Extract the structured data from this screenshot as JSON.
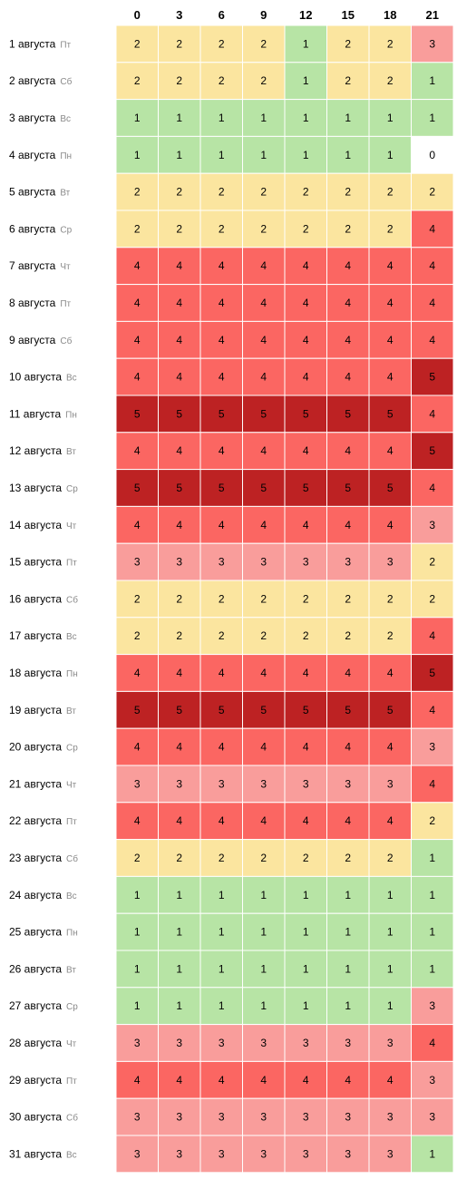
{
  "chart_data": {
    "type": "heatmap",
    "columns": [
      "0",
      "3",
      "6",
      "9",
      "12",
      "15",
      "18",
      "21"
    ],
    "rows": [
      {
        "date": "1 августа",
        "day": "Пт",
        "values": [
          2,
          2,
          2,
          2,
          1,
          2,
          2,
          3
        ]
      },
      {
        "date": "2 августа",
        "day": "Сб",
        "values": [
          2,
          2,
          2,
          2,
          1,
          2,
          2,
          1
        ]
      },
      {
        "date": "3 августа",
        "day": "Вс",
        "values": [
          1,
          1,
          1,
          1,
          1,
          1,
          1,
          1
        ]
      },
      {
        "date": "4 августа",
        "day": "Пн",
        "values": [
          1,
          1,
          1,
          1,
          1,
          1,
          1,
          0
        ]
      },
      {
        "date": "5 августа",
        "day": "Вт",
        "values": [
          2,
          2,
          2,
          2,
          2,
          2,
          2,
          2
        ]
      },
      {
        "date": "6 августа",
        "day": "Ср",
        "values": [
          2,
          2,
          2,
          2,
          2,
          2,
          2,
          4
        ]
      },
      {
        "date": "7 августа",
        "day": "Чт",
        "values": [
          4,
          4,
          4,
          4,
          4,
          4,
          4,
          4
        ]
      },
      {
        "date": "8 августа",
        "day": "Пт",
        "values": [
          4,
          4,
          4,
          4,
          4,
          4,
          4,
          4
        ]
      },
      {
        "date": "9 августа",
        "day": "Сб",
        "values": [
          4,
          4,
          4,
          4,
          4,
          4,
          4,
          4
        ]
      },
      {
        "date": "10 августа",
        "day": "Вс",
        "values": [
          4,
          4,
          4,
          4,
          4,
          4,
          4,
          5
        ]
      },
      {
        "date": "11 августа",
        "day": "Пн",
        "values": [
          5,
          5,
          5,
          5,
          5,
          5,
          5,
          4
        ]
      },
      {
        "date": "12 августа",
        "day": "Вт",
        "values": [
          4,
          4,
          4,
          4,
          4,
          4,
          4,
          5
        ]
      },
      {
        "date": "13 августа",
        "day": "Ср",
        "values": [
          5,
          5,
          5,
          5,
          5,
          5,
          5,
          4
        ]
      },
      {
        "date": "14 августа",
        "day": "Чт",
        "values": [
          4,
          4,
          4,
          4,
          4,
          4,
          4,
          3
        ]
      },
      {
        "date": "15 августа",
        "day": "Пт",
        "values": [
          3,
          3,
          3,
          3,
          3,
          3,
          3,
          2
        ]
      },
      {
        "date": "16 августа",
        "day": "Сб",
        "values": [
          2,
          2,
          2,
          2,
          2,
          2,
          2,
          2
        ]
      },
      {
        "date": "17 августа",
        "day": "Вс",
        "values": [
          2,
          2,
          2,
          2,
          2,
          2,
          2,
          4
        ]
      },
      {
        "date": "18 августа",
        "day": "Пн",
        "values": [
          4,
          4,
          4,
          4,
          4,
          4,
          4,
          5
        ]
      },
      {
        "date": "19 августа",
        "day": "Вт",
        "values": [
          5,
          5,
          5,
          5,
          5,
          5,
          5,
          4
        ]
      },
      {
        "date": "20 августа",
        "day": "Ср",
        "values": [
          4,
          4,
          4,
          4,
          4,
          4,
          4,
          3
        ]
      },
      {
        "date": "21 августа",
        "day": "Чт",
        "values": [
          3,
          3,
          3,
          3,
          3,
          3,
          3,
          4
        ]
      },
      {
        "date": "22 августа",
        "day": "Пт",
        "values": [
          4,
          4,
          4,
          4,
          4,
          4,
          4,
          2
        ]
      },
      {
        "date": "23 августа",
        "day": "Сб",
        "values": [
          2,
          2,
          2,
          2,
          2,
          2,
          2,
          1
        ]
      },
      {
        "date": "24 августа",
        "day": "Вс",
        "values": [
          1,
          1,
          1,
          1,
          1,
          1,
          1,
          1
        ]
      },
      {
        "date": "25 августа",
        "day": "Пн",
        "values": [
          1,
          1,
          1,
          1,
          1,
          1,
          1,
          1
        ]
      },
      {
        "date": "26 августа",
        "day": "Вт",
        "values": [
          1,
          1,
          1,
          1,
          1,
          1,
          1,
          1
        ]
      },
      {
        "date": "27 августа",
        "day": "Ср",
        "values": [
          1,
          1,
          1,
          1,
          1,
          1,
          1,
          3
        ]
      },
      {
        "date": "28 августа",
        "day": "Чт",
        "values": [
          3,
          3,
          3,
          3,
          3,
          3,
          3,
          4
        ]
      },
      {
        "date": "29 августа",
        "day": "Пт",
        "values": [
          4,
          4,
          4,
          4,
          4,
          4,
          4,
          3
        ]
      },
      {
        "date": "30 августа",
        "day": "Сб",
        "values": [
          3,
          3,
          3,
          3,
          3,
          3,
          3,
          3
        ]
      },
      {
        "date": "31 августа",
        "day": "Вс",
        "values": [
          3,
          3,
          3,
          3,
          3,
          3,
          3,
          1
        ]
      }
    ],
    "color_scale": {
      "0": "#ffffff",
      "1": "#b7e4a5",
      "2": "#fbe59f",
      "3": "#f99d9b",
      "4": "#fb6662",
      "5": "#bd2223"
    },
    "title": "",
    "xlabel": "",
    "ylabel": ""
  }
}
